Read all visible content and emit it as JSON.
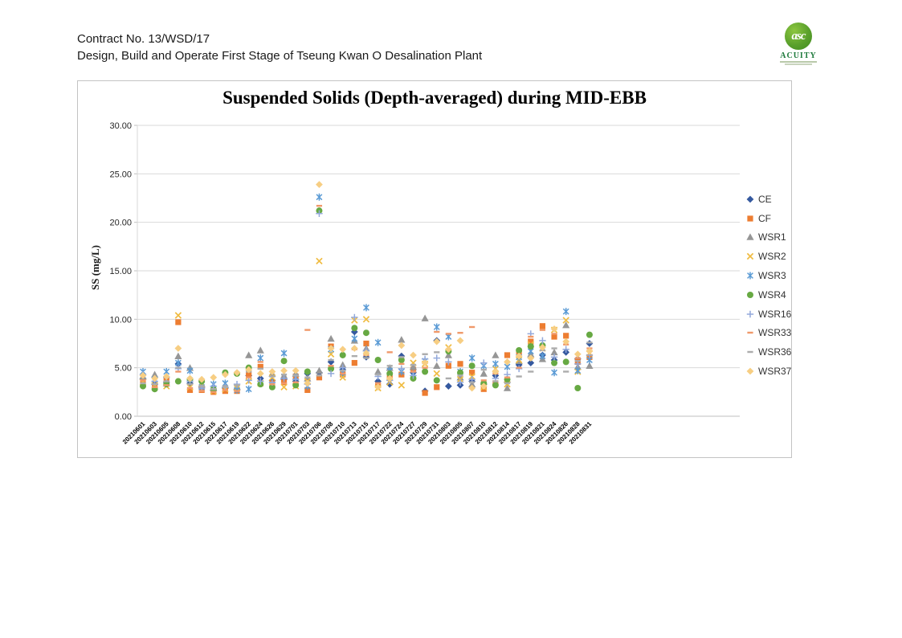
{
  "page": {
    "header_line1": "Contract No. 13/WSD/17",
    "header_line2": "Design, Build and Operate First Stage of Tseung Kwan O Desalination Plant",
    "logo_name": "ACUITY",
    "logo_monogram": "asc"
  },
  "chart_data": {
    "type": "scatter",
    "title": "Suspended Solids (Depth-averaged) during MID-EBB",
    "xlabel": "",
    "ylabel": "SS (mg/L)",
    "ylim": [
      0,
      30
    ],
    "ytick_step": 5,
    "ytick_labels": [
      "0.00",
      "5.00",
      "10.00",
      "15.00",
      "20.00",
      "25.00",
      "30.00"
    ],
    "grid": true,
    "legend_position": "right",
    "categories": [
      "20210601",
      "20210603",
      "20210605",
      "20210608",
      "20210610",
      "20210612",
      "20210615",
      "20210617",
      "20210619",
      "20210622",
      "20210624",
      "20210626",
      "20210629",
      "20210701",
      "20210703",
      "20210706",
      "20210708",
      "20210710",
      "20210713",
      "20210715",
      "20210717",
      "20210722",
      "20210724",
      "20210727",
      "20210729",
      "20210731",
      "20210803",
      "20210805",
      "20210807",
      "20210810",
      "20210812",
      "20210814",
      "20210817",
      "20210819",
      "20210821",
      "20210824",
      "20210826",
      "20210828",
      "20210831"
    ],
    "series": [
      {
        "name": "CE",
        "marker": "diamond",
        "color": "#35599F",
        "values": [
          3.9,
          3.3,
          3.5,
          5.4,
          3.4,
          3.0,
          2.7,
          2.9,
          2.8,
          4.2,
          3.9,
          3.7,
          3.8,
          3.6,
          4.4,
          4.5,
          5.6,
          4.8,
          8.7,
          6.1,
          3.6,
          3.3,
          6.2,
          4.5,
          2.6,
          7.8,
          3.1,
          3.2,
          3.6,
          3.3,
          4.2,
          3.5,
          5.3,
          5.5,
          6.3,
          5.8,
          6.6,
          5.9,
          7.5
        ]
      },
      {
        "name": "CF",
        "marker": "square",
        "color": "#ED7D31",
        "values": [
          3.3,
          3.0,
          3.8,
          9.7,
          2.7,
          2.7,
          2.5,
          2.6,
          2.6,
          4.4,
          5.1,
          3.4,
          3.5,
          4.1,
          2.7,
          4.0,
          7.2,
          4.3,
          5.5,
          7.5,
          3.2,
          4.1,
          4.3,
          4.8,
          2.4,
          3.0,
          5.2,
          5.4,
          4.5,
          2.8,
          3.4,
          6.3,
          6.5,
          7.7,
          9.3,
          8.2,
          8.3,
          5.6,
          6.1
        ]
      },
      {
        "name": "WSR1",
        "marker": "triangle",
        "color": "#969696",
        "values": [
          4.1,
          4.3,
          3.4,
          6.2,
          5.0,
          3.3,
          2.9,
          3.2,
          3.0,
          6.3,
          6.8,
          4.4,
          4.2,
          4.4,
          3.9,
          4.7,
          8.0,
          5.3,
          7.8,
          7.0,
          4.6,
          5.0,
          7.9,
          5.1,
          10.1,
          5.2,
          6.3,
          4.0,
          3.3,
          4.4,
          6.3,
          2.9,
          5.7,
          6.4,
          5.9,
          6.6,
          9.4,
          5.1,
          5.2
        ]
      },
      {
        "name": "WSR2",
        "marker": "x",
        "color": "#F0BC42",
        "values": [
          3.5,
          3.2,
          3.1,
          10.4,
          3.0,
          3.4,
          2.6,
          2.8,
          2.9,
          3.6,
          3.4,
          4.0,
          3.0,
          3.1,
          3.6,
          16.0,
          6.4,
          4.0,
          9.9,
          10.0,
          2.9,
          3.5,
          3.2,
          5.5,
          5.4,
          4.4,
          7.1,
          3.8,
          4.1,
          3.0,
          4.9,
          3.3,
          5.8,
          7.4,
          7.0,
          8.9,
          9.9,
          4.6,
          6.5
        ]
      },
      {
        "name": "WSR3",
        "marker": "star",
        "color": "#5B9BD5",
        "values": [
          4.6,
          3.8,
          4.6,
          5.5,
          4.7,
          3.0,
          3.3,
          3.4,
          2.7,
          2.8,
          6.0,
          3.2,
          6.5,
          4.0,
          3.1,
          22.6,
          6.9,
          4.5,
          8.0,
          11.2,
          7.6,
          4.7,
          4.6,
          4.4,
          5.7,
          9.2,
          8.2,
          4.6,
          6.0,
          5.2,
          5.4,
          5.1,
          6.1,
          6.7,
          6.2,
          4.5,
          10.8,
          4.7,
          5.8
        ]
      },
      {
        "name": "WSR4",
        "marker": "circle",
        "color": "#67A943",
        "values": [
          3.1,
          2.8,
          3.3,
          3.6,
          3.8,
          3.6,
          2.8,
          4.5,
          4.4,
          5.0,
          3.3,
          3.0,
          5.7,
          3.2,
          4.6,
          21.2,
          4.9,
          6.3,
          9.1,
          8.6,
          5.8,
          4.4,
          5.8,
          3.9,
          4.6,
          3.7,
          6.7,
          4.5,
          5.2,
          3.4,
          3.2,
          3.8,
          6.8,
          7.2,
          7.3,
          5.5,
          5.6,
          2.9,
          8.4
        ]
      },
      {
        "name": "WSR16",
        "marker": "plus",
        "color": "#93A9DB",
        "values": [
          4.3,
          3.6,
          4.0,
          4.9,
          3.6,
          2.9,
          3.1,
          3.0,
          3.3,
          3.7,
          3.6,
          3.5,
          3.9,
          3.8,
          3.3,
          20.9,
          4.4,
          5.0,
          10.2,
          6.8,
          4.1,
          3.7,
          4.9,
          4.2,
          5.9,
          6.0,
          5.6,
          3.5,
          3.8,
          5.5,
          3.9,
          4.3,
          4.9,
          8.5,
          7.8,
          6.1,
          6.9,
          5.4,
          6.3
        ]
      },
      {
        "name": "WSR33",
        "marker": "dash",
        "color": "#F0996A",
        "values": [
          3.7,
          3.0,
          3.2,
          4.6,
          2.9,
          2.6,
          2.5,
          2.7,
          2.6,
          4.0,
          5.6,
          3.3,
          3.4,
          3.5,
          8.9,
          21.7,
          5.2,
          4.4,
          6.9,
          6.3,
          3.4,
          6.6,
          5.4,
          4.6,
          5.0,
          8.7,
          8.5,
          8.6,
          9.2,
          3.7,
          4.4,
          4.0,
          5.0,
          8.2,
          8.9,
          8.5,
          7.4,
          6.0,
          7.0
        ]
      },
      {
        "name": "WSR36",
        "marker": "dash",
        "color": "#ACACAC",
        "values": [
          3.4,
          3.3,
          3.6,
          5.0,
          3.3,
          3.1,
          2.8,
          3.1,
          3.2,
          4.6,
          4.9,
          4.1,
          4.3,
          4.2,
          4.0,
          4.2,
          5.8,
          4.7,
          6.2,
          6.0,
          4.3,
          5.2,
          6.1,
          5.3,
          6.4,
          6.6,
          3.9,
          4.2,
          3.5,
          4.8,
          3.6,
          3.4,
          4.1,
          4.6,
          6.8,
          7.0,
          4.6,
          5.7,
          7.6
        ]
      },
      {
        "name": "WSR37",
        "marker": "diamond",
        "color": "#F7CE83",
        "values": [
          4.2,
          3.9,
          4.1,
          7.0,
          3.9,
          3.8,
          4.0,
          4.3,
          4.5,
          4.8,
          4.4,
          4.6,
          4.7,
          4.7,
          3.4,
          23.9,
          7.0,
          6.9,
          7.0,
          6.5,
          3.0,
          3.9,
          7.3,
          6.3,
          5.5,
          7.7,
          6.9,
          7.8,
          2.9,
          3.1,
          4.6,
          5.6,
          6.2,
          6.0,
          7.1,
          9.0,
          7.7,
          6.4,
          6.7
        ]
      }
    ]
  }
}
